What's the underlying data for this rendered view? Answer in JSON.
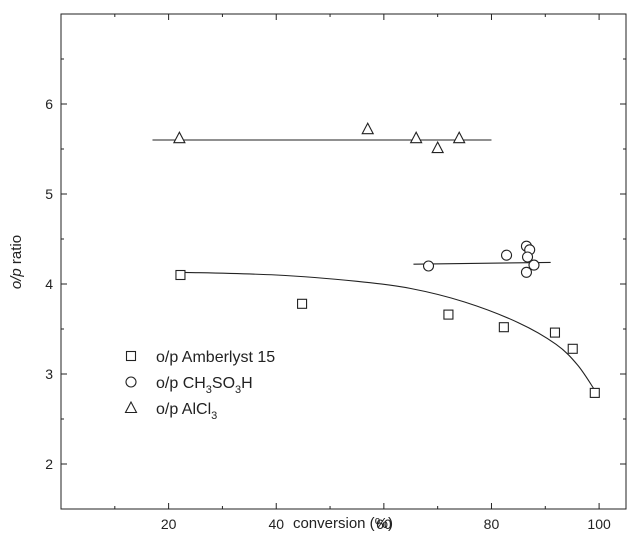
{
  "chart_data": {
    "type": "scatter",
    "xlabel": "conversion (%)",
    "ylabel": "o/p ratio",
    "ylabel_italic_part": "o/p",
    "xlim": [
      0,
      105
    ],
    "ylim": [
      1.5,
      7.0
    ],
    "x_ticks": [
      20,
      40,
      60,
      80,
      100
    ],
    "x_tick_labels": [
      "20",
      "40",
      "60",
      "80",
      "100"
    ],
    "y_ticks": [
      2,
      3,
      4,
      5,
      6
    ],
    "y_tick_labels": [
      "2",
      "3",
      "4",
      "5",
      "6"
    ],
    "grid": false,
    "legend_position": "bottom-left",
    "series": [
      {
        "name": "o/p Amberlyst 15",
        "name_parts": [
          "o/p Amberlyst 15"
        ],
        "marker": "square",
        "points": [
          [
            22.2,
            4.1
          ],
          [
            44.8,
            3.78
          ],
          [
            72.0,
            3.66
          ],
          [
            82.3,
            3.52
          ],
          [
            91.8,
            3.46
          ],
          [
            95.1,
            3.28
          ],
          [
            99.2,
            2.79
          ]
        ],
        "fit": {
          "type": "curve",
          "points": [
            [
              22.2,
              4.13
            ],
            [
              40,
              4.1
            ],
            [
              55,
              4.03
            ],
            [
              65,
              3.95
            ],
            [
              75,
              3.8
            ],
            [
              85,
              3.57
            ],
            [
              92,
              3.33
            ],
            [
              96,
              3.1
            ],
            [
              99.2,
              2.82
            ]
          ]
        }
      },
      {
        "name": "o/p CH3SO3H",
        "name_parts": [
          "o/p CH",
          "3",
          "SO",
          "3",
          "H"
        ],
        "marker": "circle",
        "points": [
          [
            68.3,
            4.2
          ],
          [
            82.8,
            4.32
          ],
          [
            86.5,
            4.42
          ],
          [
            87.1,
            4.38
          ],
          [
            86.7,
            4.3
          ],
          [
            87.9,
            4.21
          ],
          [
            86.5,
            4.13
          ]
        ],
        "fit": {
          "type": "line",
          "points": [
            [
              65.5,
              4.22
            ],
            [
              91.0,
              4.24
            ]
          ]
        }
      },
      {
        "name": "o/p AlCl3",
        "name_parts": [
          "o/p AlCl",
          "3"
        ],
        "marker": "triangle",
        "points": [
          [
            22.0,
            5.62
          ],
          [
            57.0,
            5.72
          ],
          [
            66.0,
            5.62
          ],
          [
            70.0,
            5.51
          ],
          [
            74.0,
            5.62
          ]
        ],
        "fit": {
          "type": "line",
          "points": [
            [
              17.0,
              5.6
            ],
            [
              80.0,
              5.6
            ]
          ]
        }
      }
    ]
  }
}
